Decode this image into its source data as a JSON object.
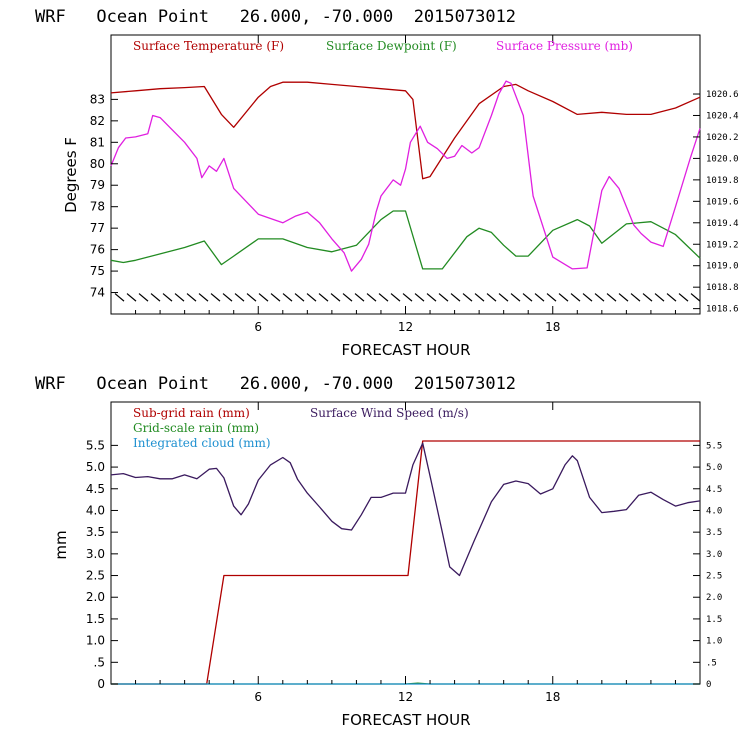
{
  "chart_data": [
    {
      "type": "line",
      "title": "WRF   Ocean Point   26.000, -70.000  2015073012",
      "xlabel": "FORECAST HOUR",
      "ylabel": "Degrees F",
      "xlim": [
        0,
        24
      ],
      "ylim": [
        73,
        86
      ],
      "y2lim": [
        1018.55,
        1021.15
      ],
      "xticks": [
        6,
        12,
        18
      ],
      "yticks": [
        74,
        75,
        76,
        77,
        78,
        79,
        80,
        81,
        82,
        83
      ],
      "y2ticks": [
        1018.6,
        1018.8,
        1019.0,
        1019.2,
        1019.4,
        1019.6,
        1019.8,
        1020.0,
        1020.2,
        1020.4,
        1020.6
      ],
      "ytick_labels": [
        "74",
        "75",
        "76",
        "77",
        "78",
        "79",
        "80",
        "81",
        "82",
        "83"
      ],
      "xtick_labels": [
        "6",
        "12",
        "18"
      ],
      "y2tick_labels": [
        "1018.6",
        "1018.8",
        "1019.0",
        "1019.2",
        "1019.4",
        "1019.6",
        "1019.8",
        "1020.0",
        "1020.2",
        "1020.4",
        "1020.6"
      ],
      "colors": {
        "temperature": "#b00000",
        "dewpoint": "#228b22",
        "pressure": "#e020e0"
      },
      "legend": [
        "Surface Temperature (F)",
        "Surface Dewpoint (F)",
        "Surface Pressure (mb)"
      ],
      "series": [
        {
          "name": "Surface Temperature (F)",
          "axis": "left",
          "color": "#b00000",
          "x": [
            0,
            1,
            2,
            3,
            3.8,
            4.5,
            5,
            6,
            6.5,
            7,
            8,
            9,
            10,
            11,
            12,
            12.3,
            12.7,
            13,
            14,
            15,
            16,
            16.5,
            17,
            18,
            19,
            20,
            21,
            22,
            23,
            24
          ],
          "y": [
            83.3,
            83.4,
            83.5,
            83.55,
            83.6,
            82.3,
            81.7,
            83.1,
            83.6,
            83.8,
            83.8,
            83.7,
            83.6,
            83.5,
            83.4,
            83.0,
            79.3,
            79.4,
            81.2,
            82.8,
            83.6,
            83.7,
            83.4,
            82.9,
            82.3,
            82.4,
            82.3,
            82.3,
            82.6,
            83.1
          ]
        },
        {
          "name": "Surface Dewpoint (F)",
          "axis": "left",
          "color": "#228b22",
          "x": [
            0,
            0.5,
            1,
            2,
            3,
            3.8,
            4.5,
            5,
            6,
            7,
            8,
            9,
            10,
            11,
            11.5,
            12,
            12.7,
            13.5,
            14.5,
            15,
            15.5,
            16,
            16.5,
            17,
            18,
            19,
            19.5,
            20,
            21,
            22,
            23,
            24
          ],
          "y": [
            75.5,
            75.4,
            75.5,
            75.8,
            76.1,
            76.4,
            75.3,
            75.7,
            76.5,
            76.5,
            76.1,
            75.9,
            76.2,
            77.4,
            77.8,
            77.8,
            75.1,
            75.1,
            76.6,
            77.0,
            76.8,
            76.2,
            75.7,
            75.7,
            76.9,
            77.4,
            77.1,
            76.3,
            77.2,
            77.3,
            76.7,
            75.6
          ]
        },
        {
          "name": "Surface Pressure (mb)",
          "axis": "right",
          "color": "#e020e0",
          "x": [
            0,
            0.3,
            0.6,
            1,
            1.5,
            1.7,
            2,
            3,
            3.5,
            3.7,
            4,
            4.3,
            4.6,
            5,
            5.5,
            6,
            6.5,
            7,
            7.5,
            8,
            8.5,
            9,
            9.5,
            9.8,
            10.2,
            10.5,
            10.8,
            11,
            11.5,
            11.8,
            12,
            12.2,
            12.6,
            12.9,
            13.3,
            13.7,
            14,
            14.3,
            14.7,
            15,
            15.5,
            15.8,
            16.1,
            16.3,
            16.8,
            17.2,
            18,
            18.8,
            19.4,
            20,
            20.3,
            20.7,
            21.3,
            21.6,
            22,
            22.5,
            23,
            23.6,
            24
          ],
          "y": [
            1019.93,
            1020.1,
            1020.19,
            1020.2,
            1020.23,
            1020.4,
            1020.38,
            1020.15,
            1020.0,
            1019.82,
            1019.93,
            1019.88,
            1020.0,
            1019.72,
            1019.6,
            1019.48,
            1019.44,
            1019.4,
            1019.46,
            1019.5,
            1019.4,
            1019.25,
            1019.12,
            1018.95,
            1019.06,
            1019.2,
            1019.5,
            1019.65,
            1019.8,
            1019.75,
            1019.9,
            1020.15,
            1020.3,
            1020.15,
            1020.09,
            1020.0,
            1020.02,
            1020.12,
            1020.05,
            1020.1,
            1020.4,
            1020.6,
            1020.72,
            1020.7,
            1020.4,
            1019.65,
            1019.08,
            1018.97,
            1018.98,
            1019.7,
            1019.83,
            1019.72,
            1019.38,
            1019.3,
            1019.22,
            1019.18,
            1019.55,
            1020.0,
            1020.28
          ]
        }
      ]
    },
    {
      "type": "line",
      "title": "WRF   Ocean Point   26.000, -70.000  2015073012",
      "xlabel": "FORECAST HOUR",
      "ylabel": "mm",
      "xlim": [
        0,
        24
      ],
      "ylim": [
        0,
        6.5
      ],
      "y2lim": [
        0,
        6.5
      ],
      "xticks": [
        6,
        12,
        18
      ],
      "xtick_labels": [
        "6",
        "12",
        "18"
      ],
      "yticks": [
        0,
        0.5,
        1.0,
        1.5,
        2.0,
        2.5,
        3.0,
        3.5,
        4.0,
        4.5,
        5.0,
        5.5
      ],
      "ytick_labels": [
        "0",
        ".5",
        "1.0",
        "1.5",
        "2.0",
        "2.5",
        "3.0",
        "3.5",
        "4.0",
        "4.5",
        "5.0",
        "5.5"
      ],
      "y2tick_labels": [
        "0",
        ".5",
        "1.0",
        "1.5",
        "2.0",
        "2.5",
        "3.0",
        "3.5",
        "4.0",
        "4.5",
        "5.0",
        "5.5"
      ],
      "colors": {
        "subgrid": "#b00000",
        "gridscale": "#228b22",
        "cloud": "#1e90d0",
        "wind": "#3a1a5e"
      },
      "legend": [
        "Sub-grid rain (mm)",
        "Surface Wind Speed (m/s)",
        "Grid-scale rain (mm)",
        "Integrated cloud (mm)"
      ],
      "series": [
        {
          "name": "Sub-grid rain (mm)",
          "axis": "left",
          "color": "#b00000",
          "x": [
            0,
            3.9,
            4.6,
            12.1,
            12.7,
            24
          ],
          "y": [
            0,
            0,
            2.5,
            2.5,
            5.6,
            5.6
          ]
        },
        {
          "name": "Surface Wind Speed (m/s)",
          "axis": "right",
          "color": "#3a1a5e",
          "x": [
            0,
            0.5,
            1,
            1.5,
            2,
            2.5,
            3,
            3.5,
            4,
            4.3,
            4.6,
            5,
            5.3,
            5.6,
            6,
            6.5,
            7,
            7.3,
            7.6,
            8,
            8.5,
            9,
            9.4,
            9.8,
            10.2,
            10.6,
            11,
            11.5,
            12,
            12.3,
            12.7,
            13,
            13.5,
            13.8,
            14.2,
            14.8,
            15.5,
            16,
            16.5,
            17,
            17.5,
            18,
            18.5,
            18.8,
            19,
            19.5,
            20,
            20.5,
            21,
            21.5,
            22,
            22.5,
            23,
            23.5,
            24
          ],
          "y": [
            4.82,
            4.85,
            4.76,
            4.78,
            4.73,
            4.73,
            4.82,
            4.73,
            4.95,
            4.97,
            4.75,
            4.1,
            3.9,
            4.15,
            4.7,
            5.05,
            5.22,
            5.1,
            4.72,
            4.4,
            4.08,
            3.75,
            3.58,
            3.55,
            3.9,
            4.3,
            4.3,
            4.4,
            4.4,
            5.05,
            5.55,
            4.8,
            3.5,
            2.7,
            2.5,
            3.3,
            4.2,
            4.6,
            4.68,
            4.62,
            4.38,
            4.5,
            5.05,
            5.26,
            5.15,
            4.3,
            3.95,
            3.98,
            4.02,
            4.35,
            4.42,
            4.25,
            4.1,
            4.18,
            4.22
          ]
        },
        {
          "name": "Grid-scale rain (mm)",
          "axis": "left",
          "color": "#228b22",
          "x": [
            0,
            12,
            12.5,
            13,
            24
          ],
          "y": [
            0,
            0,
            0.02,
            0,
            0
          ]
        },
        {
          "name": "Integrated cloud (mm)",
          "axis": "left",
          "color": "#1e90d0",
          "x": [
            0,
            24
          ],
          "y": [
            0,
            0
          ]
        }
      ]
    }
  ]
}
